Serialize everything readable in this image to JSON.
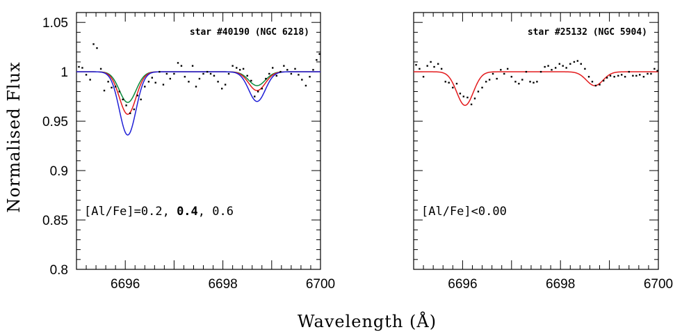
{
  "figure": {
    "xlabel": "Wavelength (Å)",
    "ylabel": "Normalised Flux"
  },
  "chart_data": [
    {
      "type": "line",
      "title": "star #40190 (NGC 6218)",
      "annotation": {
        "prefix": "[Al/Fe]=0.2, ",
        "bold": "0.4",
        "suffix": ", 0.6"
      },
      "xlim": [
        6695,
        6700
      ],
      "ylim": [
        0.8,
        1.06
      ],
      "xticks": [
        "6696",
        "6698",
        "6700"
      ],
      "yticks": [
        "0.8",
        "0.85",
        "0.9",
        "0.95",
        "1",
        "1.05"
      ],
      "lines": [
        6696.05,
        6698.7
      ],
      "series": [
        {
          "color": "#0a8a3c",
          "depths": [
            0.031,
            0.014
          ],
          "sigma": 0.17
        },
        {
          "color": "#e31a1c",
          "depths": [
            0.043,
            0.019
          ],
          "sigma": 0.17
        },
        {
          "color": "#1f1fd6",
          "depths": [
            0.064,
            0.03
          ],
          "sigma": 0.17
        }
      ],
      "observed": [
        [
          6695.05,
          1.005
        ],
        [
          6695.12,
          1.004
        ],
        [
          6695.2,
          0.997
        ],
        [
          6695.28,
          0.992
        ],
        [
          6695.35,
          1.028
        ],
        [
          6695.42,
          1.024
        ],
        [
          6695.5,
          1.003
        ],
        [
          6695.57,
          0.981
        ],
        [
          6695.65,
          0.99
        ],
        [
          6695.72,
          0.984
        ],
        [
          6695.8,
          0.985
        ],
        [
          6695.88,
          0.98
        ],
        [
          6695.95,
          0.972
        ],
        [
          6696.02,
          0.966
        ],
        [
          6696.1,
          0.958
        ],
        [
          6696.18,
          0.962
        ],
        [
          6696.25,
          0.976
        ],
        [
          6696.32,
          0.972
        ],
        [
          6696.4,
          0.985
        ],
        [
          6696.48,
          0.99
        ],
        [
          6696.55,
          0.994
        ],
        [
          6696.62,
          0.989
        ],
        [
          6696.7,
          1.0
        ],
        [
          6696.78,
          0.987
        ],
        [
          6696.85,
          0.998
        ],
        [
          6696.92,
          0.993
        ],
        [
          6697.0,
          0.998
        ],
        [
          6697.08,
          1.009
        ],
        [
          6697.15,
          1.006
        ],
        [
          6697.22,
          0.995
        ],
        [
          6697.3,
          0.99
        ],
        [
          6697.38,
          1.006
        ],
        [
          6697.45,
          0.985
        ],
        [
          6697.52,
          0.993
        ],
        [
          6697.6,
          0.998
        ],
        [
          6697.68,
          1.0
        ],
        [
          6697.75,
          0.998
        ],
        [
          6697.82,
          0.996
        ],
        [
          6697.9,
          0.99
        ],
        [
          6697.98,
          0.983
        ],
        [
          6698.05,
          0.987
        ],
        [
          6698.12,
          0.998
        ],
        [
          6698.2,
          1.006
        ],
        [
          6698.28,
          1.004
        ],
        [
          6698.35,
          1.002
        ],
        [
          6698.42,
          1.003
        ],
        [
          6698.5,
          0.996
        ],
        [
          6698.58,
          0.991
        ],
        [
          6698.65,
          0.975
        ],
        [
          6698.72,
          0.98
        ],
        [
          6698.8,
          0.983
        ],
        [
          6698.88,
          0.993
        ],
        [
          6698.95,
          0.998
        ],
        [
          6699.02,
          1.004
        ],
        [
          6699.1,
          0.996
        ],
        [
          6699.18,
          1.0
        ],
        [
          6699.25,
          1.006
        ],
        [
          6699.32,
          1.002
        ],
        [
          6699.4,
          0.998
        ],
        [
          6699.48,
          1.003
        ],
        [
          6699.55,
          0.997
        ],
        [
          6699.62,
          0.992
        ],
        [
          6699.7,
          0.986
        ],
        [
          6699.78,
          0.995
        ],
        [
          6699.85,
          1.002
        ],
        [
          6699.92,
          1.012
        ],
        [
          6699.98,
          1.018
        ]
      ]
    },
    {
      "type": "line",
      "title": "star #25132 (NGC 5904)",
      "annotation": {
        "prefix": "[Al/Fe]<0.00",
        "bold": "",
        "suffix": ""
      },
      "xlim": [
        6695,
        6700
      ],
      "ylim": [
        0.8,
        1.06
      ],
      "xticks": [
        "6696",
        "6698",
        "6700"
      ],
      "yticks": [],
      "lines": [
        6696.05,
        6698.7
      ],
      "series": [
        {
          "color": "#e31a1c",
          "depths": [
            0.034,
            0.014
          ],
          "sigma": 0.17
        }
      ],
      "observed": [
        [
          6695.05,
          1.007
        ],
        [
          6695.12,
          1.003
        ],
        [
          6695.2,
          0.995
        ],
        [
          6695.28,
          1.006
        ],
        [
          6695.35,
          1.01
        ],
        [
          6695.42,
          1.005
        ],
        [
          6695.5,
          1.008
        ],
        [
          6695.57,
          1.003
        ],
        [
          6695.65,
          0.99
        ],
        [
          6695.72,
          0.989
        ],
        [
          6695.8,
          0.984
        ],
        [
          6695.88,
          0.988
        ],
        [
          6695.95,
          0.978
        ],
        [
          6696.02,
          0.975
        ],
        [
          6696.1,
          0.974
        ],
        [
          6696.18,
          0.967
        ],
        [
          6696.25,
          0.973
        ],
        [
          6696.32,
          0.98
        ],
        [
          6696.4,
          0.984
        ],
        [
          6696.48,
          0.99
        ],
        [
          6696.55,
          0.992
        ],
        [
          6696.62,
          0.998
        ],
        [
          6696.7,
          0.993
        ],
        [
          6696.78,
          1.002
        ],
        [
          6696.85,
          0.998
        ],
        [
          6696.92,
          1.003
        ],
        [
          6697.0,
          0.995
        ],
        [
          6697.08,
          0.99
        ],
        [
          6697.15,
          0.988
        ],
        [
          6697.22,
          0.992
        ],
        [
          6697.3,
          1.0
        ],
        [
          6697.38,
          0.99
        ],
        [
          6697.45,
          0.989
        ],
        [
          6697.52,
          0.99
        ],
        [
          6697.6,
          1.0
        ],
        [
          6697.68,
          1.005
        ],
        [
          6697.75,
          1.006
        ],
        [
          6697.82,
          1.002
        ],
        [
          6697.9,
          1.004
        ],
        [
          6697.98,
          1.008
        ],
        [
          6698.05,
          1.006
        ],
        [
          6698.12,
          1.004
        ],
        [
          6698.2,
          1.008
        ],
        [
          6698.28,
          1.01
        ],
        [
          6698.35,
          1.011
        ],
        [
          6698.42,
          1.008
        ],
        [
          6698.5,
          1.003
        ],
        [
          6698.58,
          0.995
        ],
        [
          6698.65,
          0.99
        ],
        [
          6698.72,
          0.986
        ],
        [
          6698.8,
          0.987
        ],
        [
          6698.88,
          0.991
        ],
        [
          6698.95,
          0.994
        ],
        [
          6699.02,
          0.996
        ],
        [
          6699.1,
          0.995
        ],
        [
          6699.18,
          0.996
        ],
        [
          6699.25,
          0.997
        ],
        [
          6699.32,
          0.995
        ],
        [
          6699.4,
          1.0
        ],
        [
          6699.48,
          0.996
        ],
        [
          6699.55,
          0.996
        ],
        [
          6699.62,
          0.997
        ],
        [
          6699.7,
          0.995
        ],
        [
          6699.78,
          0.998
        ],
        [
          6699.85,
          0.998
        ],
        [
          6699.92,
          1.003
        ],
        [
          6699.98,
          1.001
        ]
      ]
    }
  ]
}
